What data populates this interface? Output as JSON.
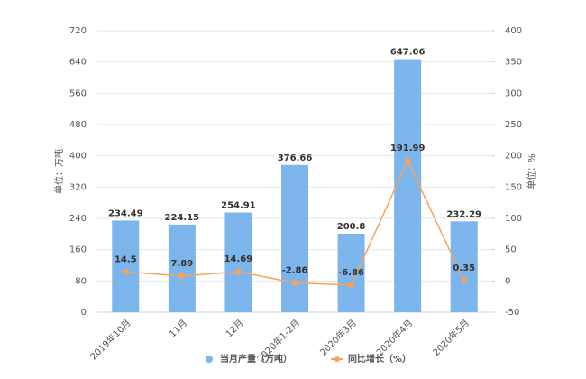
{
  "chart_data": {
    "type": "bar-line",
    "categories": [
      "2019年10月",
      "11月",
      "12月",
      "2020年1-2月",
      "2020年3月",
      "2020年4月",
      "2020年5月"
    ],
    "series": [
      {
        "name": "当月产量（万吨）",
        "color": "#7cb5ec",
        "type": "bar",
        "values": [
          234.49,
          224.15,
          254.91,
          376.66,
          200.8,
          647.06,
          232.29
        ]
      },
      {
        "name": "同比增长（%）",
        "color": "#f7a35c",
        "type": "line",
        "axis": "y2",
        "values": [
          14.5,
          7.89,
          14.69,
          -2.86,
          -6.86,
          191.99,
          0.35
        ]
      }
    ],
    "ylabel": "单位：万吨",
    "y2label": "单位：%",
    "ylim": [
      0,
      720
    ],
    "yticks": [
      0,
      80,
      160,
      240,
      320,
      400,
      480,
      560,
      640,
      720
    ],
    "y2lim": [
      -50,
      400
    ],
    "y2ticks": [
      -50,
      0,
      50,
      100,
      150,
      200,
      250,
      300,
      350,
      400
    ],
    "grid": true
  }
}
